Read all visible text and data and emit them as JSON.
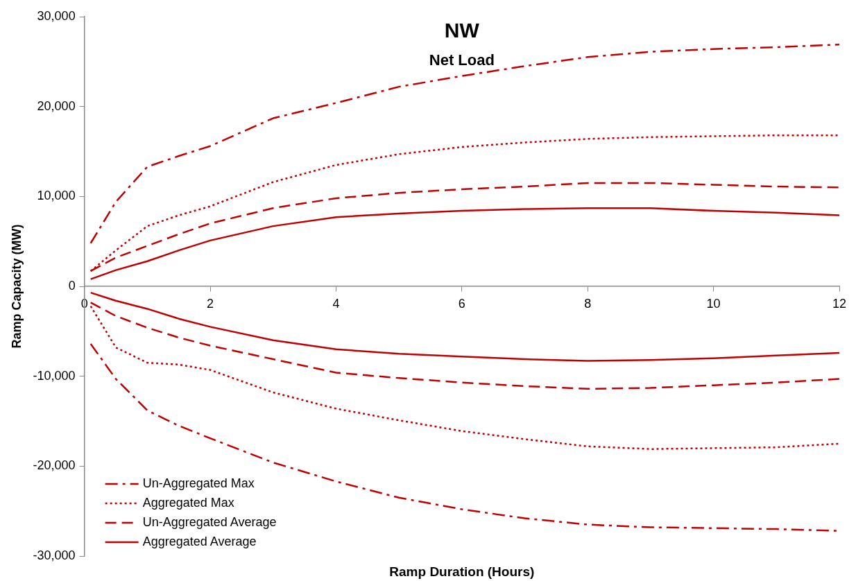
{
  "chart_data": {
    "type": "line",
    "title": "NW",
    "subtitle": "Net Load",
    "xlabel": "Ramp Duration (Hours)",
    "ylabel": "Ramp Capacity (MW)",
    "xlim": [
      0,
      12
    ],
    "xticks": [
      0,
      2,
      4,
      6,
      8,
      10,
      12
    ],
    "ylim": [
      -30000,
      30000
    ],
    "yticks": [
      {
        "value": -30000,
        "label": "-30,000"
      },
      {
        "value": -20000,
        "label": "-20,000"
      },
      {
        "value": -10000,
        "label": "-10,000"
      },
      0,
      {
        "value": 10000,
        "label": "10,000"
      },
      {
        "value": 20000,
        "label": "20,000"
      },
      {
        "value": 30000,
        "label": "30,000"
      }
    ],
    "grid": false,
    "legend": "bottom left",
    "marker": "none",
    "x": [
      0.1,
      0.5,
      1,
      1.5,
      2,
      3,
      4,
      5,
      6,
      7,
      8,
      9,
      10,
      11,
      12
    ],
    "series": [
      {
        "name": "Un-Aggregated Max",
        "color": "#c00000",
        "line_style": "dashdot",
        "values": [
          4800,
          9400,
          13300,
          14500,
          15600,
          18700,
          20400,
          22200,
          23400,
          24500,
          25500,
          26100,
          26400,
          26600,
          26900
        ]
      },
      {
        "name": "Aggregated Max",
        "color": "#c00000",
        "line_style": "dotted",
        "values": [
          1700,
          4000,
          6700,
          7900,
          8900,
          11600,
          13500,
          14700,
          15500,
          16000,
          16400,
          16600,
          16700,
          16800,
          16800
        ]
      },
      {
        "name": "Un-Aggregated Average",
        "color": "#c00000",
        "line_style": "dashed",
        "values": [
          1700,
          3200,
          4500,
          5800,
          7000,
          8700,
          9800,
          10400,
          10800,
          11100,
          11500,
          11500,
          11300,
          11100,
          11000
        ]
      },
      {
        "name": "Aggregated Average",
        "color": "#c00000",
        "line_style": "solid",
        "values": [
          800,
          1800,
          2800,
          4000,
          5100,
          6700,
          7700,
          8100,
          8400,
          8600,
          8700,
          8700,
          8400,
          8200,
          7900
        ]
      },
      {
        "color": "#c00000",
        "line_style": "dashdot",
        "values": [
          -6400,
          -10300,
          -13800,
          -15500,
          -16900,
          -19600,
          -21700,
          -23500,
          -24800,
          -25800,
          -26500,
          -26800,
          -26900,
          -27000,
          -27200
        ]
      },
      {
        "color": "#c00000",
        "line_style": "dotted",
        "values": [
          -2200,
          -6800,
          -8500,
          -8700,
          -9300,
          -11800,
          -13600,
          -14900,
          -16100,
          -17000,
          -17800,
          -18100,
          -18000,
          -17900,
          -17500
        ]
      },
      {
        "color": "#c00000",
        "line_style": "dashed",
        "values": [
          -1800,
          -3300,
          -4600,
          -5700,
          -6600,
          -8100,
          -9600,
          -10200,
          -10700,
          -11100,
          -11400,
          -11300,
          -11000,
          -10700,
          -10300
        ]
      },
      {
        "color": "#c00000",
        "line_style": "solid",
        "values": [
          -700,
          -1600,
          -2500,
          -3600,
          -4500,
          -6000,
          -7000,
          -7500,
          -7800,
          -8100,
          -8300,
          -8200,
          -8000,
          -7700,
          -7400
        ]
      }
    ]
  }
}
